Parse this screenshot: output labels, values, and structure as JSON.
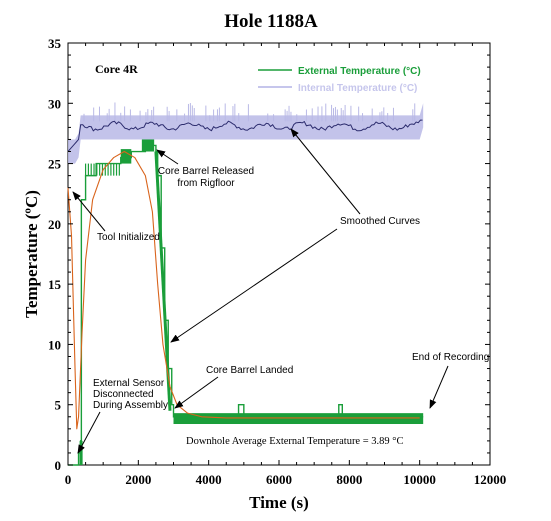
{
  "chart_data": {
    "type": "line",
    "title": "Hole 1188A",
    "xlabel": "Time (s)",
    "ylabel": "Temperature (ºC)",
    "xlim": [
      0,
      12000
    ],
    "ylim": [
      0,
      35
    ],
    "xticks": [
      0,
      2000,
      4000,
      6000,
      8000,
      10000,
      12000
    ],
    "yticks": [
      0,
      5,
      10,
      15,
      20,
      25,
      30,
      35
    ],
    "grid": false,
    "legend_position": "top-right",
    "panel_label": "Core 4R",
    "colors": {
      "external": "#1a9e3a",
      "internal": "#b9b9e6",
      "smoothed": "#d9641c",
      "internal_smoothed": "#2c2c6e"
    },
    "series": [
      {
        "name": "External Temperature (°C)",
        "x": [
          0,
          150,
          300,
          360,
          380,
          500,
          800,
          1200,
          1500,
          1800,
          2000,
          2200,
          2400,
          2500,
          2550,
          2650,
          2750,
          2850,
          2950,
          3000,
          3100,
          3500,
          4000,
          4500,
          4800,
          4850,
          5000,
          6000,
          7000,
          7600,
          7700,
          7800,
          8500,
          9000,
          9500,
          10000,
          10100
        ],
        "y": [
          0,
          0,
          1,
          2,
          22,
          24,
          25,
          25,
          25.5,
          26,
          26,
          26.5,
          26.5,
          26,
          24,
          18,
          12,
          8,
          5,
          4,
          4,
          4,
          4,
          4,
          4,
          5,
          4,
          4,
          4,
          4,
          5,
          4,
          4,
          4,
          4,
          4,
          4
        ]
      },
      {
        "name": "Internal Temperature (°C)",
        "x": [
          0,
          200,
          300,
          360,
          400,
          10000,
          10100
        ],
        "y": [
          26,
          26,
          26.5,
          28,
          28,
          28,
          29
        ]
      },
      {
        "name": "Smoothed Curves",
        "x": [
          0,
          100,
          200,
          250,
          300,
          400,
          500,
          700,
          1000,
          1300,
          1600,
          1900,
          2200,
          2400,
          2550,
          2700,
          2900,
          3100,
          3400,
          3800,
          4500,
          10000
        ],
        "y": [
          23,
          19,
          8,
          3,
          4,
          11,
          17,
          22,
          24.5,
          25.5,
          26,
          25.5,
          24,
          21,
          15,
          10,
          6.5,
          5,
          4.3,
          4,
          3.9,
          3.9
        ]
      }
    ],
    "annotations": {
      "tool_initialized": "Tool Initialized",
      "core_barrel_released_1": "Core Barrel Released",
      "core_barrel_released_2": "from Rigfloor",
      "smoothed_curves": "Smoothed Curves",
      "core_barrel_landed": "Core Barrel Landed",
      "end_of_recording": "End of Recording",
      "sensor_1": "External Sensor",
      "sensor_2": "Disconnected",
      "sensor_3": "During Assembly",
      "downhole_avg": "Downhole Average External Temperature = 3.89 °C"
    }
  }
}
